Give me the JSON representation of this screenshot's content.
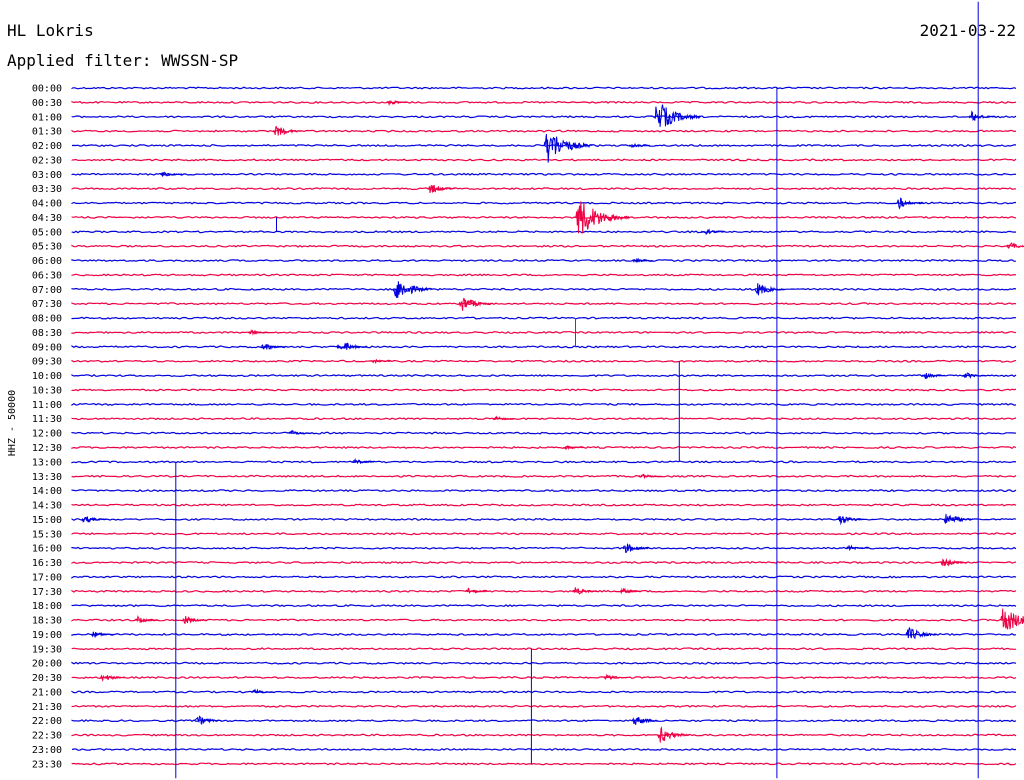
{
  "header": {
    "station": "HL Lokris",
    "filter_label": "Applied filter: WWSSN-SP",
    "date": "2021-03-22"
  },
  "chart_data": {
    "type": "helicorder",
    "title": "HL Lokris",
    "subtitle": "Applied filter: WWSSN-SP",
    "date": "2021-03-22",
    "ylabel": "HHZ - 50000",
    "row_interval_minutes": 30,
    "colors": {
      "even_rows": "#0000dd",
      "odd_rows": "#ee0044"
    },
    "rows": [
      "00:00",
      "00:30",
      "01:00",
      "01:30",
      "02:00",
      "02:30",
      "03:00",
      "03:30",
      "04:00",
      "04:30",
      "05:00",
      "05:30",
      "06:00",
      "06:30",
      "07:00",
      "07:30",
      "08:00",
      "08:30",
      "09:00",
      "09:30",
      "10:00",
      "10:30",
      "11:00",
      "11:30",
      "12:00",
      "12:30",
      "13:00",
      "13:30",
      "14:00",
      "14:30",
      "15:00",
      "15:30",
      "16:00",
      "16:30",
      "17:00",
      "17:30",
      "18:00",
      "18:30",
      "19:00",
      "19:30",
      "20:00",
      "20:30",
      "21:00",
      "21:30",
      "22:00",
      "22:30",
      "23:00",
      "23:30"
    ],
    "events": [
      {
        "row": 1,
        "minute": 10,
        "amp": 0.4
      },
      {
        "row": 2,
        "minute": 18.5,
        "amp": 2.4
      },
      {
        "row": 2,
        "minute": 28.5,
        "amp": 0.8
      },
      {
        "row": 3,
        "minute": 6.4,
        "amp": 0.9
      },
      {
        "row": 4,
        "minute": 15.0,
        "amp": 2.6
      },
      {
        "row": 4,
        "minute": 17.7,
        "amp": 0.3
      },
      {
        "row": 6,
        "minute": 2.8,
        "amp": 0.4
      },
      {
        "row": 7,
        "minute": 11.3,
        "amp": 0.8
      },
      {
        "row": 8,
        "minute": 26.2,
        "amp": 0.8
      },
      {
        "row": 9,
        "minute": 16.0,
        "amp": 3.0
      },
      {
        "row": 10,
        "minute": 20.0,
        "amp": 0.5
      },
      {
        "row": 11,
        "minute": 29.7,
        "amp": 0.6
      },
      {
        "row": 12,
        "minute": 17.8,
        "amp": 0.3
      },
      {
        "row": 14,
        "minute": 10.2,
        "amp": 1.8
      },
      {
        "row": 14,
        "minute": 21.7,
        "amp": 1.0
      },
      {
        "row": 15,
        "minute": 12.3,
        "amp": 1.2
      },
      {
        "row": 17,
        "minute": 5.6,
        "amp": 0.3
      },
      {
        "row": 18,
        "minute": 6.0,
        "amp": 0.6
      },
      {
        "row": 18,
        "minute": 8.6,
        "amp": 0.6
      },
      {
        "row": 18,
        "minute": 8.4,
        "amp": 0.5
      },
      {
        "row": 19,
        "minute": 9.5,
        "amp": 0.3
      },
      {
        "row": 20,
        "minute": 27.0,
        "amp": 0.5
      },
      {
        "row": 20,
        "minute": 28.3,
        "amp": 0.5
      },
      {
        "row": 23,
        "minute": 13.4,
        "amp": 0.3
      },
      {
        "row": 24,
        "minute": 6.9,
        "amp": 0.4
      },
      {
        "row": 25,
        "minute": 15.6,
        "amp": 0.3
      },
      {
        "row": 26,
        "minute": 8.9,
        "amp": 0.4
      },
      {
        "row": 27,
        "minute": 18.0,
        "amp": 0.4
      },
      {
        "row": 30,
        "minute": 0.3,
        "amp": 0.6
      },
      {
        "row": 30,
        "minute": 24.3,
        "amp": 0.8
      },
      {
        "row": 30,
        "minute": 27.7,
        "amp": 1.0
      },
      {
        "row": 32,
        "minute": 17.5,
        "amp": 0.8
      },
      {
        "row": 32,
        "minute": 24.6,
        "amp": 0.4
      },
      {
        "row": 33,
        "minute": 27.6,
        "amp": 0.7
      },
      {
        "row": 35,
        "minute": 12.5,
        "amp": 0.5
      },
      {
        "row": 35,
        "minute": 15.9,
        "amp": 0.6
      },
      {
        "row": 35,
        "minute": 17.4,
        "amp": 0.4
      },
      {
        "row": 37,
        "minute": 2.0,
        "amp": 0.5
      },
      {
        "row": 37,
        "minute": 3.5,
        "amp": 0.6
      },
      {
        "row": 37,
        "minute": 29.5,
        "amp": 2.2
      },
      {
        "row": 38,
        "minute": 0.6,
        "amp": 0.5
      },
      {
        "row": 38,
        "minute": 26.5,
        "amp": 1.1
      },
      {
        "row": 41,
        "minute": 0.9,
        "amp": 0.6
      },
      {
        "row": 41,
        "minute": 16.9,
        "amp": 0.5
      },
      {
        "row": 42,
        "minute": 5.7,
        "amp": 0.4
      },
      {
        "row": 44,
        "minute": 3.9,
        "amp": 0.8
      },
      {
        "row": 44,
        "minute": 17.8,
        "amp": 0.8
      },
      {
        "row": 45,
        "minute": 18.6,
        "amp": 1.2
      }
    ],
    "spikes": [
      {
        "row": 0,
        "minute": 22.4,
        "up_rows": 0,
        "down_rows": 48
      },
      {
        "row": 0,
        "minute": 28.8,
        "up_rows": 6,
        "down_rows": 48
      },
      {
        "row": 10,
        "minute": 6.5,
        "up_rows": 1,
        "down_rows": 0
      },
      {
        "row": 17,
        "minute": 16.0,
        "up_rows": 1,
        "down_rows": 1
      },
      {
        "row": 20,
        "minute": 19.3,
        "up_rows": 1,
        "down_rows": 6
      },
      {
        "row": 30,
        "minute": 3.3,
        "up_rows": 4,
        "down_rows": 18
      },
      {
        "row": 40,
        "minute": 14.6,
        "up_rows": 1,
        "down_rows": 7
      }
    ]
  }
}
